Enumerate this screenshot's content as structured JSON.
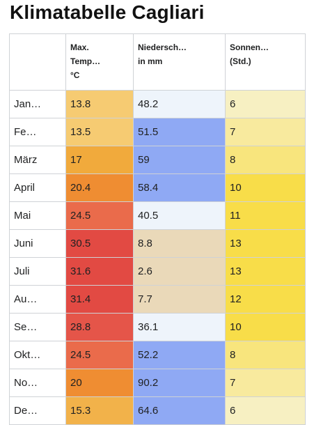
{
  "title": "Klimatabelle Cagliari",
  "headers": {
    "month": "",
    "temp": [
      "Max.",
      "Temp…",
      "°C"
    ],
    "precip": [
      "Niedersch…",
      "in mm"
    ],
    "sun": [
      "Sonnen…",
      "(Std.)"
    ]
  },
  "rows": [
    {
      "month": "Jan…",
      "temp": "13.8",
      "precip": "48.2",
      "sun": "6",
      "temp_color": "#f6cb72",
      "precip_color": "#eef4fb",
      "sun_color": "#f7f0c2"
    },
    {
      "month": "Fe…",
      "temp": "13.5",
      "precip": "51.5",
      "sun": "7",
      "temp_color": "#f6cb72",
      "precip_color": "#8fa9f4",
      "sun_color": "#f8ea9e"
    },
    {
      "month": "März",
      "temp": "17",
      "precip": "59",
      "sun": "8",
      "temp_color": "#f1aa3c",
      "precip_color": "#8fa9f4",
      "sun_color": "#f8e57d"
    },
    {
      "month": "April",
      "temp": "20.4",
      "precip": "58.4",
      "sun": "10",
      "temp_color": "#ef8d32",
      "precip_color": "#8fa9f4",
      "sun_color": "#f8dd49"
    },
    {
      "month": "Mai",
      "temp": "24.5",
      "precip": "40.5",
      "sun": "11",
      "temp_color": "#ea6b4b",
      "precip_color": "#eef4fb",
      "sun_color": "#f8dd49"
    },
    {
      "month": "Juni",
      "temp": "30.5",
      "precip": "8.8",
      "sun": "13",
      "temp_color": "#e24a43",
      "precip_color": "#ead9b9",
      "sun_color": "#f8dd49"
    },
    {
      "month": "Juli",
      "temp": "31.6",
      "precip": "2.6",
      "sun": "13",
      "temp_color": "#e24a43",
      "precip_color": "#ead9b9",
      "sun_color": "#f8dd49"
    },
    {
      "month": "Au…",
      "temp": "31.4",
      "precip": "7.7",
      "sun": "12",
      "temp_color": "#e24a43",
      "precip_color": "#ead9b9",
      "sun_color": "#f8dd49"
    },
    {
      "month": "Se…",
      "temp": "28.8",
      "precip": "36.1",
      "sun": "10",
      "temp_color": "#e55549",
      "precip_color": "#eef4fb",
      "sun_color": "#f8dd49"
    },
    {
      "month": "Okt…",
      "temp": "24.5",
      "precip": "52.2",
      "sun": "8",
      "temp_color": "#ea6b4b",
      "precip_color": "#8fa9f4",
      "sun_color": "#f8e57d"
    },
    {
      "month": "No…",
      "temp": "20",
      "precip": "90.2",
      "sun": "7",
      "temp_color": "#ef8d32",
      "precip_color": "#8fa9f4",
      "sun_color": "#f8ea9e"
    },
    {
      "month": "De…",
      "temp": "15.3",
      "precip": "64.6",
      "sun": "6",
      "temp_color": "#f2b24a",
      "precip_color": "#8fa9f4",
      "sun_color": "#f7f0c2"
    }
  ]
}
